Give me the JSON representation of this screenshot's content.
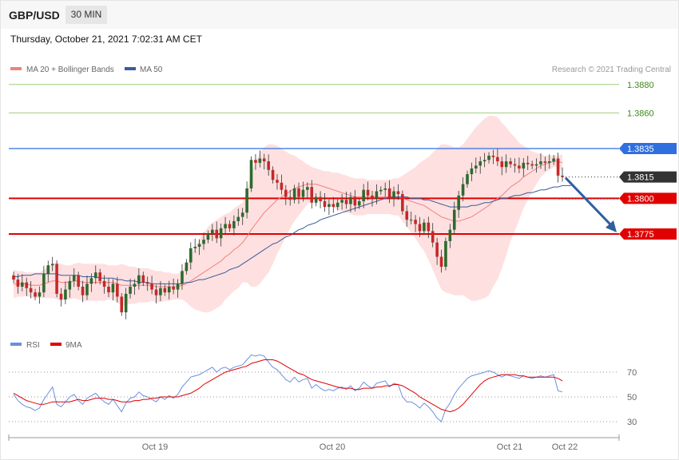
{
  "header": {
    "symbol": "GBP/USD",
    "timeframe": "30 MIN",
    "datetime": "Thursday, October 21, 2021 7:02:31 AM CET"
  },
  "legend": {
    "ma20_label": "MA 20 + Bollinger Bands",
    "ma50_label": "MA 50",
    "rsi_label": "RSI",
    "rsi_ma_label": "9MA",
    "copyright": "Research © 2021 Trading Central"
  },
  "colors": {
    "up": "#2d6a2d",
    "down": "#c62828",
    "ma20": "#f08080",
    "bands": "#fdd5d5",
    "ma50": "#3b5b9a",
    "resistance_green": "#7ab648",
    "level_blue": "#2f6fe0",
    "level_red": "#e00000",
    "current": "#333333",
    "arrow": "#2f5f9e",
    "rsi": "#6a8fe0",
    "rsi_ma": "#e00000"
  },
  "chart_data": [
    {
      "type": "candlestick",
      "x_tick_labels": [
        "Oct 19",
        "Oct 20",
        "Oct 21",
        "Oct 22"
      ],
      "ylim": [
        1.37,
        1.3885
      ],
      "price_levels": [
        {
          "label": "1.3880",
          "value": 1.388,
          "style": "green"
        },
        {
          "label": "1.3860",
          "value": 1.386,
          "style": "green"
        },
        {
          "label": "1.3835",
          "value": 1.3835,
          "style": "blue"
        },
        {
          "label": "1.3815",
          "value": 1.3815,
          "style": "current"
        },
        {
          "label": "1.3800",
          "value": 1.38,
          "style": "red"
        },
        {
          "label": "1.3775",
          "value": 1.3775,
          "style": "red"
        }
      ],
      "close": [
        1.3743,
        1.3738,
        1.3741,
        1.3737,
        1.3734,
        1.3731,
        1.3734,
        1.3747,
        1.3753,
        1.3754,
        1.3733,
        1.3729,
        1.3736,
        1.3742,
        1.3746,
        1.3738,
        1.3732,
        1.374,
        1.3744,
        1.3748,
        1.3742,
        1.3738,
        1.3734,
        1.374,
        1.3731,
        1.372,
        1.3733,
        1.3738,
        1.374,
        1.3746,
        1.3741,
        1.374,
        1.3736,
        1.3732,
        1.3737,
        1.3734,
        1.3738,
        1.3736,
        1.374,
        1.3749,
        1.3755,
        1.3765,
        1.3766,
        1.3768,
        1.3771,
        1.3775,
        1.3778,
        1.3772,
        1.3779,
        1.3782,
        1.3779,
        1.3784,
        1.3787,
        1.379,
        1.3807,
        1.3827,
        1.3825,
        1.3828,
        1.3826,
        1.382,
        1.3813,
        1.3811,
        1.3806,
        1.3801,
        1.3799,
        1.3807,
        1.3801,
        1.3806,
        1.3808,
        1.3797,
        1.3801,
        1.3798,
        1.3794,
        1.3796,
        1.3794,
        1.3797,
        1.3799,
        1.3796,
        1.3801,
        1.3795,
        1.3798,
        1.3806,
        1.3802,
        1.38,
        1.3805,
        1.3806,
        1.3807,
        1.38,
        1.3805,
        1.3803,
        1.3791,
        1.3785,
        1.3785,
        1.3782,
        1.3777,
        1.3783,
        1.3777,
        1.3769,
        1.3759,
        1.3752,
        1.377,
        1.3778,
        1.3792,
        1.3802,
        1.381,
        1.3817,
        1.3821,
        1.3823,
        1.3826,
        1.3827,
        1.383,
        1.3829,
        1.3826,
        1.3822,
        1.3826,
        1.3824,
        1.3823,
        1.3821,
        1.3825,
        1.3824,
        1.3823,
        1.3824,
        1.3826,
        1.3825,
        1.3826,
        1.3828,
        1.3816,
        1.3815
      ],
      "ma20": [
        1.374,
        1.374,
        1.374,
        1.374,
        1.3739,
        1.3739,
        1.3739,
        1.374,
        1.3741,
        1.3742,
        1.3742,
        1.3741,
        1.3741,
        1.3741,
        1.3742,
        1.3742,
        1.3741,
        1.3741,
        1.3741,
        1.3741,
        1.3741,
        1.3741,
        1.3741,
        1.3741,
        1.374,
        1.3739,
        1.3739,
        1.3739,
        1.3739,
        1.3739,
        1.3739,
        1.3739,
        1.3739,
        1.3738,
        1.3738,
        1.3738,
        1.3738,
        1.3738,
        1.3738,
        1.3739,
        1.374,
        1.3742,
        1.3744,
        1.3746,
        1.3748,
        1.375,
        1.3752,
        1.3754,
        1.3756,
        1.3759,
        1.3761,
        1.3764,
        1.3766,
        1.3769,
        1.3773,
        1.3778,
        1.3782,
        1.3786,
        1.379,
        1.3793,
        1.3796,
        1.3799,
        1.3801,
        1.3803,
        1.3805,
        1.3807,
        1.3808,
        1.3809,
        1.381,
        1.381,
        1.381,
        1.3809,
        1.3808,
        1.3807,
        1.3806,
        1.3805,
        1.3804,
        1.3803,
        1.3802,
        1.3801,
        1.3801,
        1.3801,
        1.3801,
        1.3801,
        1.3801,
        1.3801,
        1.3801,
        1.3801,
        1.3801,
        1.3801,
        1.38,
        1.3799,
        1.3798,
        1.3797,
        1.3796,
        1.3795,
        1.3793,
        1.3791,
        1.3789,
        1.3787,
        1.3786,
        1.3785,
        1.3784,
        1.3784,
        1.3785,
        1.3786,
        1.3787,
        1.3789,
        1.3791,
        1.3793,
        1.3795,
        1.3798,
        1.38,
        1.3802,
        1.3805,
        1.3808,
        1.381,
        1.3812,
        1.3815,
        1.3817,
        1.3819,
        1.3821,
        1.3823,
        1.3824,
        1.3825,
        1.3826,
        1.3826,
        1.3825
      ],
      "bb_upper": [
        1.375,
        1.3749,
        1.3749,
        1.3748,
        1.3748,
        1.3748,
        1.3748,
        1.375,
        1.3752,
        1.3754,
        1.3755,
        1.3754,
        1.3753,
        1.3753,
        1.3754,
        1.3755,
        1.3754,
        1.3754,
        1.3754,
        1.3754,
        1.3754,
        1.3754,
        1.3753,
        1.3753,
        1.3753,
        1.3754,
        1.3753,
        1.3752,
        1.3752,
        1.3751,
        1.3751,
        1.3751,
        1.375,
        1.3749,
        1.3749,
        1.3748,
        1.3748,
        1.3747,
        1.3747,
        1.3749,
        1.3753,
        1.376,
        1.3766,
        1.3771,
        1.3776,
        1.378,
        1.3783,
        1.3785,
        1.3787,
        1.3789,
        1.379,
        1.3793,
        1.3795,
        1.3797,
        1.3805,
        1.3818,
        1.3826,
        1.3832,
        1.3836,
        1.3838,
        1.3838,
        1.3837,
        1.3835,
        1.3833,
        1.3831,
        1.383,
        1.3828,
        1.3826,
        1.3824,
        1.3822,
        1.3821,
        1.382,
        1.3819,
        1.3819,
        1.3818,
        1.3818,
        1.3817,
        1.3816,
        1.3815,
        1.3814,
        1.3814,
        1.3814,
        1.3813,
        1.3813,
        1.3813,
        1.3813,
        1.3813,
        1.3813,
        1.3814,
        1.3814,
        1.3816,
        1.3818,
        1.382,
        1.3822,
        1.3825,
        1.3827,
        1.3829,
        1.3832,
        1.3835,
        1.3838,
        1.3838,
        1.3837,
        1.3836,
        1.3836,
        1.3838,
        1.3842,
        1.3846,
        1.385,
        1.3853,
        1.3856,
        1.3858,
        1.3858,
        1.3857,
        1.3853,
        1.385,
        1.3846,
        1.3843,
        1.3839,
        1.3837,
        1.3835,
        1.3833,
        1.3832,
        1.3831,
        1.383,
        1.383,
        1.383,
        1.383,
        1.3831
      ],
      "bb_lower": [
        1.373,
        1.3731,
        1.3731,
        1.3732,
        1.373,
        1.373,
        1.373,
        1.373,
        1.373,
        1.373,
        1.3729,
        1.3728,
        1.3729,
        1.3729,
        1.373,
        1.3729,
        1.3728,
        1.3728,
        1.3728,
        1.3728,
        1.3728,
        1.3728,
        1.3729,
        1.3729,
        1.3727,
        1.3724,
        1.3725,
        1.3726,
        1.3726,
        1.3727,
        1.3727,
        1.3727,
        1.3728,
        1.3727,
        1.3727,
        1.3728,
        1.3728,
        1.3729,
        1.3729,
        1.3729,
        1.3727,
        1.3724,
        1.3722,
        1.3721,
        1.372,
        1.372,
        1.3721,
        1.3723,
        1.3725,
        1.3729,
        1.3732,
        1.3735,
        1.3737,
        1.3741,
        1.3741,
        1.3738,
        1.3738,
        1.374,
        1.3744,
        1.3748,
        1.3754,
        1.3761,
        1.3767,
        1.3773,
        1.3779,
        1.3784,
        1.3788,
        1.3792,
        1.3796,
        1.3798,
        1.3799,
        1.3798,
        1.3797,
        1.3795,
        1.3794,
        1.3792,
        1.3791,
        1.379,
        1.3789,
        1.3788,
        1.3788,
        1.3788,
        1.3789,
        1.3789,
        1.3789,
        1.3789,
        1.3789,
        1.3789,
        1.3788,
        1.3788,
        1.3784,
        1.378,
        1.3776,
        1.3772,
        1.3767,
        1.3763,
        1.3757,
        1.375,
        1.3743,
        1.3736,
        1.3734,
        1.3733,
        1.3732,
        1.3732,
        1.3732,
        1.373,
        1.3728,
        1.3728,
        1.3729,
        1.373,
        1.3732,
        1.3738,
        1.3743,
        1.3751,
        1.376,
        1.377,
        1.3777,
        1.3785,
        1.3793,
        1.3799,
        1.3805,
        1.381,
        1.3815,
        1.3818,
        1.382,
        1.3822,
        1.3822,
        1.3819
      ],
      "ma50": [
        1.3745,
        1.3745,
        1.3746,
        1.3746,
        1.3746,
        1.3747,
        1.3747,
        1.3747,
        1.3747,
        1.3747,
        1.3747,
        1.3746,
        1.3746,
        1.3746,
        1.3746,
        1.3746,
        1.3745,
        1.3745,
        1.3745,
        1.3745,
        1.3744,
        1.3744,
        1.3744,
        1.3744,
        1.3743,
        1.3743,
        1.3742,
        1.3742,
        1.3742,
        1.3741,
        1.3741,
        1.3741,
        1.374,
        1.374,
        1.374,
        1.374,
        1.374,
        1.374,
        1.374,
        1.374,
        1.3741,
        1.3741,
        1.3742,
        1.3743,
        1.3743,
        1.3744,
        1.3745,
        1.3746,
        1.3747,
        1.3748,
        1.375,
        1.3751,
        1.3752,
        1.3754,
        1.3756,
        1.3758,
        1.376,
        1.3762,
        1.3764,
        1.3766,
        1.3768,
        1.3769,
        1.3771,
        1.3773,
        1.3774,
        1.3776,
        1.3778,
        1.3779,
        1.3781,
        1.3782,
        1.3783,
        1.3785,
        1.3786,
        1.3787,
        1.3788,
        1.3789,
        1.379,
        1.3791,
        1.3792,
        1.3793,
        1.3794,
        1.3795,
        1.3796,
        1.3797,
        1.3798,
        1.3799,
        1.38,
        1.3801,
        1.3801,
        1.3801,
        1.3801,
        1.3801,
        1.38,
        1.38,
        1.38,
        1.3799,
        1.3799,
        1.3798,
        1.3797,
        1.3796,
        1.3795,
        1.3794,
        1.3794,
        1.3794,
        1.3794,
        1.3794,
        1.3795,
        1.3795,
        1.3796,
        1.3797,
        1.3797,
        1.3798,
        1.3799,
        1.38,
        1.38,
        1.3801,
        1.3802,
        1.3802,
        1.3803,
        1.3804,
        1.3804,
        1.3805,
        1.3806,
        1.3806,
        1.3807,
        1.3808,
        1.3808,
        1.3809,
        1.3809,
        1.3809
      ],
      "arrow_to": 1.3775
    },
    {
      "type": "line",
      "title": "",
      "ylim": [
        20,
        85
      ],
      "y_ticks": [
        30,
        50,
        70
      ],
      "series": [
        {
          "name": "RSI",
          "values": [
            52,
            47,
            44,
            42,
            41,
            39,
            41,
            48,
            53,
            58,
            44,
            42,
            46,
            50,
            52,
            47,
            44,
            49,
            51,
            53,
            49,
            46,
            44,
            48,
            43,
            38,
            45,
            49,
            50,
            54,
            51,
            50,
            48,
            46,
            50,
            48,
            51,
            49,
            52,
            58,
            62,
            66,
            67,
            68,
            70,
            72,
            74,
            70,
            73,
            74,
            72,
            74,
            75,
            76,
            80,
            84,
            83,
            84,
            83,
            78,
            74,
            72,
            68,
            64,
            62,
            66,
            62,
            64,
            65,
            57,
            60,
            57,
            55,
            56,
            55,
            57,
            58,
            56,
            59,
            55,
            57,
            62,
            59,
            57,
            61,
            62,
            63,
            58,
            61,
            60,
            50,
            46,
            46,
            44,
            41,
            45,
            42,
            38,
            33,
            30,
            40,
            45,
            52,
            57,
            61,
            65,
            67,
            68,
            69,
            70,
            71,
            70,
            68,
            66,
            68,
            67,
            66,
            65,
            67,
            66,
            65,
            66,
            67,
            66,
            67,
            68,
            55,
            54
          ]
        },
        {
          "name": "9MA",
          "values": [
            53,
            51,
            49,
            47,
            46,
            45,
            44,
            44,
            45,
            46,
            46,
            46,
            46,
            46,
            47,
            48,
            47,
            47,
            48,
            49,
            49,
            49,
            48,
            48,
            47,
            46,
            46,
            46,
            47,
            47,
            48,
            48,
            49,
            49,
            50,
            50,
            50,
            50,
            50,
            51,
            52,
            53,
            55,
            57,
            60,
            62,
            64,
            66,
            68,
            70,
            71,
            72,
            73,
            74,
            75,
            77,
            78,
            79,
            80,
            80,
            80,
            79,
            77,
            75,
            73,
            71,
            69,
            68,
            66,
            64,
            63,
            62,
            61,
            60,
            59,
            58,
            57,
            57,
            57,
            56,
            56,
            57,
            57,
            57,
            58,
            58,
            59,
            59,
            60,
            60,
            59,
            57,
            55,
            53,
            50,
            48,
            46,
            44,
            42,
            40,
            39,
            38,
            39,
            41,
            44,
            48,
            52,
            56,
            60,
            63,
            65,
            66,
            67,
            68,
            68,
            68,
            68,
            67,
            67,
            66,
            66,
            66,
            66,
            66,
            66,
            66,
            65,
            63
          ]
        }
      ]
    }
  ]
}
